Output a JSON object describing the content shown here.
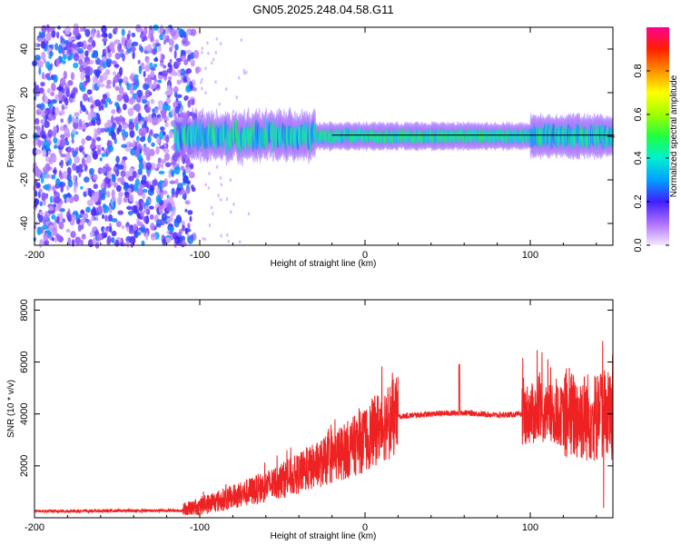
{
  "title": "GN05.2025.248.04.58.G11",
  "chart_data": [
    {
      "type": "heatmap",
      "name": "spectrogram",
      "xlabel": "Height of straight line (km)",
      "ylabel": "Frequency (Hz)",
      "xlim": [
        -200,
        150
      ],
      "ylim": [
        -50,
        50
      ],
      "xticks": [
        -200,
        -100,
        0,
        100
      ],
      "yticks": [
        -40,
        -20,
        0,
        20,
        40
      ],
      "colorbar": {
        "label": "Normalized spectral amplitude",
        "range": [
          0,
          1
        ],
        "ticks": [
          0.0,
          0.2,
          0.4,
          0.6,
          0.8
        ]
      },
      "features": {
        "noise_region_x": [
          -200,
          -100
        ],
        "signal_start_x": -115,
        "signal_center_freq_hz": 0,
        "strong_carrier_from_x": -30
      }
    },
    {
      "type": "line",
      "name": "snr",
      "xlabel": "Height of straight line (km)",
      "ylabel": "SNR (10 * v/v)",
      "xlim": [
        -200,
        150
      ],
      "ylim": [
        0,
        8400
      ],
      "xticks": [
        -200,
        -100,
        0,
        100
      ],
      "yticks": [
        2000,
        4000,
        6000,
        8000
      ],
      "color": "#ee2222",
      "envelope": {
        "x": [
          -200,
          -110,
          -100,
          -80,
          -60,
          -40,
          -20,
          0,
          10,
          20,
          40,
          60,
          80,
          100,
          110,
          120,
          130,
          140,
          150
        ],
        "y": [
          250,
          280,
          450,
          800,
          1200,
          1700,
          2300,
          3000,
          3600,
          3900,
          4000,
          4050,
          3950,
          4000,
          4000,
          3900,
          3900,
          3900,
          4000
        ]
      }
    }
  ]
}
